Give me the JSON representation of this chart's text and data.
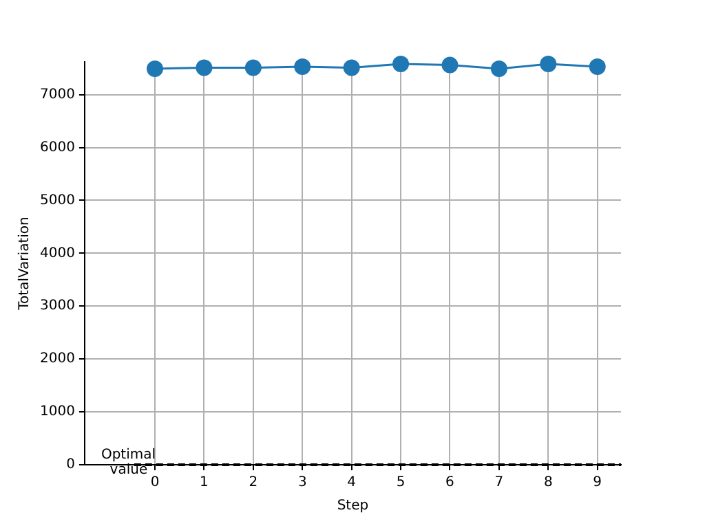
{
  "chart_data": {
    "type": "line",
    "xlabel": "Step",
    "ylabel": "TotalVariation",
    "x": [
      0,
      1,
      2,
      3,
      4,
      5,
      6,
      7,
      8,
      9
    ],
    "series": [
      {
        "color": "#1f77b4",
        "values": [
          7490,
          7510,
          7510,
          7530,
          7510,
          7580,
          7560,
          7490,
          7580,
          7530
        ]
      }
    ],
    "xlim": [
      -1.43,
      9.48
    ],
    "xticks": [
      0,
      1,
      2,
      3,
      4,
      5,
      6,
      7,
      8,
      9
    ],
    "ylim": [
      0,
      7620
    ],
    "yticks": [
      0,
      1000,
      2000,
      3000,
      4000,
      5000,
      6000,
      7000
    ],
    "grid": true,
    "marker": "circle",
    "line_style": "solid",
    "ref_lines": [
      {
        "axis": "y",
        "value": 0,
        "label": "Optimal\n  value",
        "color": "#000000",
        "line_style": "dashed"
      }
    ]
  }
}
